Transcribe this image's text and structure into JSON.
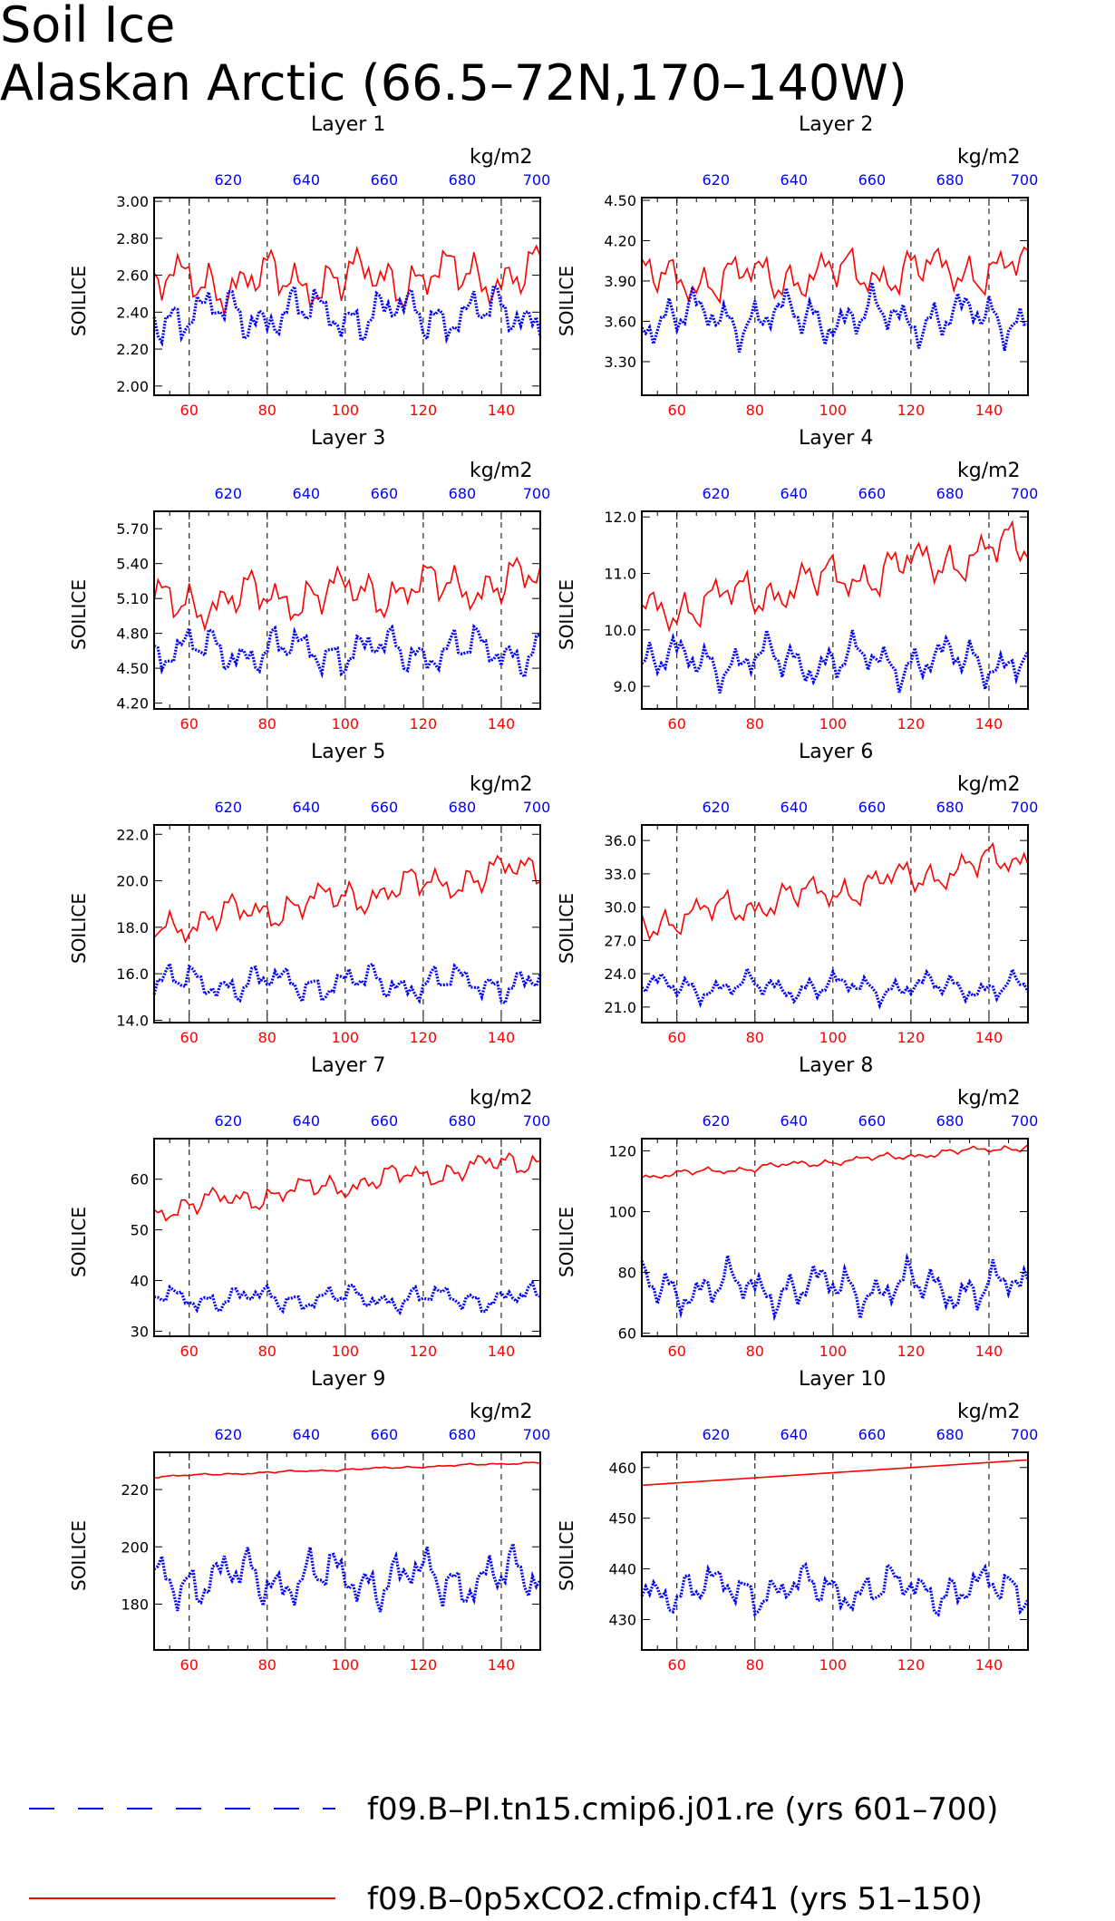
{
  "title": {
    "line1": "Soil Ice",
    "line2": "Alaskan Arctic (66.5–72N,170–140W)"
  },
  "colors": {
    "red_series": "#ff0000",
    "blue_series": "#0000ff",
    "axis": "#000000"
  },
  "shared": {
    "unit": "kg/m2",
    "ylabel": "SOILICE",
    "bottom_ticks": [
      "60",
      "80",
      "100",
      "120",
      "140"
    ],
    "top_ticks": [
      "620",
      "640",
      "660",
      "680",
      "700"
    ],
    "dashed_gridlines_at_x": [
      60,
      80,
      100,
      120,
      140
    ]
  },
  "legend": {
    "items": [
      {
        "label": "f09.B–PI.tn15.cmip6.j01.re (yrs 601–700)",
        "color": "#0000ff",
        "style": "long-dash"
      },
      {
        "label": "f09.B–0p5xCO2.cfmip.cf41 (yrs 51–150)",
        "color": "#ff0000",
        "style": "solid"
      }
    ]
  },
  "chart_data": [
    {
      "type": "line",
      "title": "Layer 1",
      "ylabel": "SOILICE",
      "xlim": [
        51,
        150
      ],
      "top_xlim": [
        601,
        700
      ],
      "ylim": [
        1.95,
        3.02
      ],
      "yticks": [
        "2.00",
        "2.20",
        "2.40",
        "2.60",
        "2.80",
        "3.00"
      ],
      "ytick_values": [
        2.0,
        2.2,
        2.4,
        2.6,
        2.8,
        3.0
      ],
      "series": [
        {
          "name": "f09.B–0p5xCO2.cfmip.cf41 (yrs 51–150)",
          "axis": "bottom",
          "color": "#ff0000",
          "style": "solid",
          "mean": 2.58,
          "amp": 0.14,
          "trend": 0.05,
          "spread": 0.75
        },
        {
          "name": "f09.B–PI.tn15.cmip6.j01.re (yrs 601–700)",
          "axis": "top",
          "color": "#0000ff",
          "style": "dotted",
          "mean": 2.39,
          "amp": 0.13,
          "trend": 0.0,
          "spread": 0.7
        }
      ]
    },
    {
      "type": "line",
      "title": "Layer 2",
      "ylabel": "SOILICE",
      "xlim": [
        51,
        150
      ],
      "top_xlim": [
        601,
        700
      ],
      "ylim": [
        3.05,
        4.52
      ],
      "yticks": [
        "3.30",
        "3.60",
        "3.90",
        "4.20",
        "4.50"
      ],
      "ytick_values": [
        3.3,
        3.6,
        3.9,
        4.2,
        4.5
      ],
      "series": [
        {
          "name": "f09.B–0p5xCO2.cfmip.cf41 (yrs 51–150)",
          "axis": "bottom",
          "color": "#ff0000",
          "style": "solid",
          "mean": 3.95,
          "amp": 0.17,
          "trend": 0.1,
          "spread": 0.8
        },
        {
          "name": "f09.B–PI.tn15.cmip6.j01.re (yrs 601–700)",
          "axis": "top",
          "color": "#0000ff",
          "style": "dotted",
          "mean": 3.63,
          "amp": 0.17,
          "trend": 0.0,
          "spread": 0.7
        }
      ]
    },
    {
      "type": "line",
      "title": "Layer 3",
      "ylabel": "SOILICE",
      "xlim": [
        51,
        150
      ],
      "top_xlim": [
        601,
        700
      ],
      "ylim": [
        4.15,
        5.85
      ],
      "yticks": [
        "4.20",
        "4.50",
        "4.80",
        "5.10",
        "5.40",
        "5.70"
      ],
      "ytick_values": [
        4.2,
        4.5,
        4.8,
        5.1,
        5.4,
        5.7
      ],
      "series": [
        {
          "name": "f09.B–0p5xCO2.cfmip.cf41 (yrs 51–150)",
          "axis": "bottom",
          "color": "#ff0000",
          "style": "solid",
          "mean": 5.15,
          "amp": 0.2,
          "trend": 0.2,
          "spread": 0.8
        },
        {
          "name": "f09.B–PI.tn15.cmip6.j01.re (yrs 601–700)",
          "axis": "top",
          "color": "#0000ff",
          "style": "dotted",
          "mean": 4.65,
          "amp": 0.18,
          "trend": 0.0,
          "spread": 0.7
        }
      ]
    },
    {
      "type": "line",
      "title": "Layer 4",
      "ylabel": "SOILICE",
      "xlim": [
        51,
        150
      ],
      "top_xlim": [
        601,
        700
      ],
      "ylim": [
        8.6,
        12.1
      ],
      "yticks": [
        "9.0",
        "10.0",
        "11.0",
        "12.0"
      ],
      "ytick_values": [
        9.0,
        10.0,
        11.0,
        12.0
      ],
      "series": [
        {
          "name": "f09.B–0p5xCO2.cfmip.cf41 (yrs 51–150)",
          "axis": "bottom",
          "color": "#ff0000",
          "style": "solid",
          "mean": 10.9,
          "amp": 0.4,
          "trend": 1.2,
          "spread": 0.8
        },
        {
          "name": "f09.B–PI.tn15.cmip6.j01.re (yrs 601–700)",
          "axis": "top",
          "color": "#0000ff",
          "style": "dotted",
          "mean": 9.45,
          "amp": 0.38,
          "trend": 0.0,
          "spread": 0.7
        }
      ]
    },
    {
      "type": "line",
      "title": "Layer 5",
      "ylabel": "SOILICE",
      "xlim": [
        51,
        150
      ],
      "top_xlim": [
        601,
        700
      ],
      "ylim": [
        13.9,
        22.4
      ],
      "yticks": [
        "14.0",
        "16.0",
        "18.0",
        "20.0",
        "22.0"
      ],
      "ytick_values": [
        14.0,
        16.0,
        18.0,
        20.0,
        22.0
      ],
      "series": [
        {
          "name": "f09.B–0p5xCO2.cfmip.cf41 (yrs 51–150)",
          "axis": "bottom",
          "color": "#ff0000",
          "style": "solid",
          "mean": 19.3,
          "amp": 0.75,
          "trend": 2.6,
          "spread": 0.8
        },
        {
          "name": "f09.B–PI.tn15.cmip6.j01.re (yrs 601–700)",
          "axis": "top",
          "color": "#0000ff",
          "style": "dotted",
          "mean": 15.6,
          "amp": 0.7,
          "trend": 0.0,
          "spread": 0.7
        }
      ]
    },
    {
      "type": "line",
      "title": "Layer 6",
      "ylabel": "SOILICE",
      "xlim": [
        51,
        150
      ],
      "top_xlim": [
        601,
        700
      ],
      "ylim": [
        19.6,
        37.4
      ],
      "yticks": [
        "21.0",
        "24.0",
        "27.0",
        "30.0",
        "33.0",
        "36.0"
      ],
      "ytick_values": [
        21,
        24,
        27,
        30,
        33,
        36
      ],
      "series": [
        {
          "name": "f09.B–0p5xCO2.cfmip.cf41 (yrs 51–150)",
          "axis": "bottom",
          "color": "#ff0000",
          "style": "solid",
          "mean": 31.5,
          "amp": 1.5,
          "trend": 6.0,
          "spread": 0.8
        },
        {
          "name": "f09.B–PI.tn15.cmip6.j01.re (yrs 601–700)",
          "axis": "top",
          "color": "#0000ff",
          "style": "dotted",
          "mean": 22.8,
          "amp": 1.1,
          "trend": 0.0,
          "spread": 0.7
        }
      ]
    },
    {
      "type": "line",
      "title": "Layer 7",
      "ylabel": "SOILICE",
      "xlim": [
        51,
        150
      ],
      "top_xlim": [
        601,
        700
      ],
      "ylim": [
        29,
        68
      ],
      "yticks": [
        "30",
        "40",
        "50",
        "60"
      ],
      "ytick_values": [
        30,
        40,
        50,
        60
      ],
      "series": [
        {
          "name": "f09.B–0p5xCO2.cfmip.cf41 (yrs 51–150)",
          "axis": "bottom",
          "color": "#ff0000",
          "style": "solid",
          "mean": 59.0,
          "amp": 2.4,
          "trend": 10.0,
          "spread": 0.8
        },
        {
          "name": "f09.B–PI.tn15.cmip6.j01.re (yrs 601–700)",
          "axis": "top",
          "color": "#0000ff",
          "style": "dotted",
          "mean": 36.5,
          "amp": 2.3,
          "trend": 0.0,
          "spread": 0.7
        }
      ]
    },
    {
      "type": "line",
      "title": "Layer 8",
      "ylabel": "SOILICE",
      "xlim": [
        51,
        150
      ],
      "top_xlim": [
        601,
        700
      ],
      "ylim": [
        59,
        124
      ],
      "yticks": [
        "60",
        "80",
        "100",
        "120"
      ],
      "ytick_values": [
        60,
        80,
        100,
        120
      ],
      "series": [
        {
          "name": "f09.B–0p5xCO2.cfmip.cf41 (yrs 51–150)",
          "axis": "bottom",
          "color": "#ff0000",
          "style": "solid",
          "mean": 116.5,
          "amp": 1.2,
          "trend": 10.0,
          "spread": 0.6
        },
        {
          "name": "f09.B–PI.tn15.cmip6.j01.re (yrs 601–700)",
          "axis": "top",
          "color": "#0000ff",
          "style": "dotted",
          "mean": 75.0,
          "amp": 7.0,
          "trend": 0.0,
          "spread": 0.7
        }
      ]
    },
    {
      "type": "line",
      "title": "Layer 9",
      "ylabel": "SOILICE",
      "xlim": [
        51,
        150
      ],
      "top_xlim": [
        601,
        700
      ],
      "ylim": [
        164,
        233
      ],
      "yticks": [
        "180",
        "200",
        "220"
      ],
      "ytick_values": [
        180,
        200,
        220
      ],
      "series": [
        {
          "name": "f09.B–0p5xCO2.cfmip.cf41 (yrs 51–150)",
          "axis": "bottom",
          "color": "#ff0000",
          "style": "solid",
          "mean": 227.0,
          "amp": 0.35,
          "trend": 5.0,
          "spread": 0.3
        },
        {
          "name": "f09.B–PI.tn15.cmip6.j01.re (yrs 601–700)",
          "axis": "top",
          "color": "#0000ff",
          "style": "dotted",
          "mean": 189.0,
          "amp": 9.0,
          "trend": 0.0,
          "spread": 0.6
        }
      ]
    },
    {
      "type": "line",
      "title": "Layer 10",
      "ylabel": "SOILICE",
      "xlim": [
        51,
        150
      ],
      "top_xlim": [
        601,
        700
      ],
      "ylim": [
        424,
        463
      ],
      "yticks": [
        "430",
        "440",
        "450",
        "460"
      ],
      "ytick_values": [
        430,
        440,
        450,
        460
      ],
      "series": [
        {
          "name": "f09.B–0p5xCO2.cfmip.cf41 (yrs 51–150)",
          "axis": "bottom",
          "color": "#ff0000",
          "style": "solid",
          "mean": 459.0,
          "amp": 0.0,
          "trend": 5.0,
          "spread": 0.0
        },
        {
          "name": "f09.B–PI.tn15.cmip6.j01.re (yrs 601–700)",
          "axis": "top",
          "color": "#0000ff",
          "style": "dotted",
          "mean": 436.0,
          "amp": 4.0,
          "trend": 0.0,
          "spread": 0.4
        }
      ]
    }
  ]
}
